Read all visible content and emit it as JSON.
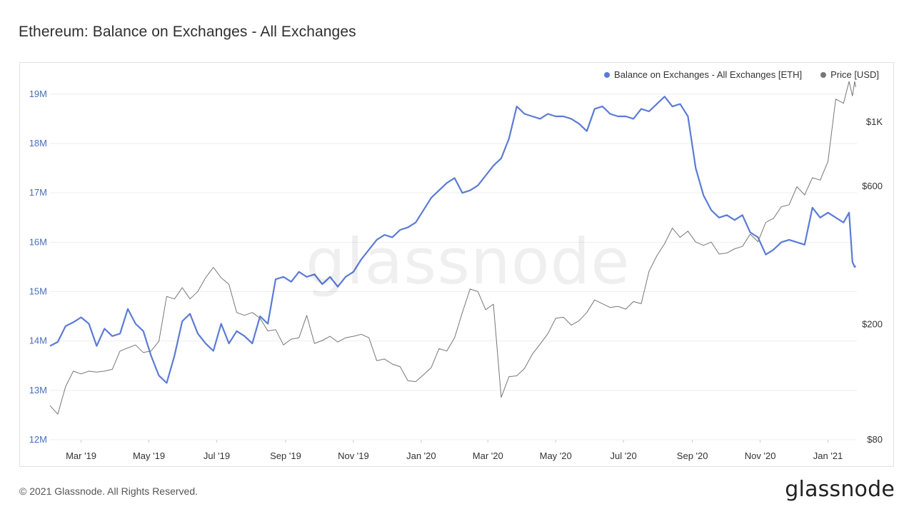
{
  "header": {
    "title": "Ethereum: Balance on Exchanges - All Exchanges"
  },
  "footer": {
    "copyright": "© 2021 Glassnode. All Rights Reserved.",
    "logo_text": "glassnode"
  },
  "watermark": "glassnode",
  "colors": {
    "balance": "#5b7bd5",
    "price": "#777777",
    "grid": "#eeeeee",
    "axis_left": "#4a6fb5",
    "axis_right": "#333333"
  },
  "chart_data": {
    "type": "line",
    "legend": {
      "placement": "top-right",
      "items": [
        {
          "label": "Balance on Exchanges - All Exchanges [ETH]",
          "color": "#5b7bd5"
        },
        {
          "label": "Price [USD]",
          "color": "#777777"
        }
      ]
    },
    "grid": true,
    "x_axis": {
      "range": [
        "2019-02-01",
        "2021-01-27"
      ],
      "ticks": [
        {
          "date": "2019-03-01",
          "label": "Mar '19"
        },
        {
          "date": "2019-05-01",
          "label": "May '19"
        },
        {
          "date": "2019-07-01",
          "label": "Jul '19"
        },
        {
          "date": "2019-09-01",
          "label": "Sep '19"
        },
        {
          "date": "2019-11-01",
          "label": "Nov '19"
        },
        {
          "date": "2020-01-01",
          "label": "Jan '20"
        },
        {
          "date": "2020-03-01",
          "label": "Mar '20"
        },
        {
          "date": "2020-05-01",
          "label": "May '20"
        },
        {
          "date": "2020-07-01",
          "label": "Jul '20"
        },
        {
          "date": "2020-09-01",
          "label": "Sep '20"
        },
        {
          "date": "2020-11-01",
          "label": "Nov '20"
        },
        {
          "date": "2021-01-01",
          "label": "Jan '21"
        }
      ]
    },
    "y_left": {
      "range": [
        12000000,
        19200000
      ],
      "ticks": [
        {
          "value": 12000000,
          "label": "12M"
        },
        {
          "value": 13000000,
          "label": "13M"
        },
        {
          "value": 14000000,
          "label": "14M"
        },
        {
          "value": 15000000,
          "label": "15M"
        },
        {
          "value": 16000000,
          "label": "16M"
        },
        {
          "value": 17000000,
          "label": "17M"
        },
        {
          "value": 18000000,
          "label": "18M"
        },
        {
          "value": 19000000,
          "label": "19M"
        }
      ]
    },
    "y_right": {
      "scale": "log",
      "range": [
        80,
        1350
      ],
      "ticks": [
        {
          "value": 80,
          "label": "$80"
        },
        {
          "value": 200,
          "label": "$200"
        },
        {
          "value": 600,
          "label": "$600"
        },
        {
          "value": 1000,
          "label": "$1K"
        }
      ]
    },
    "series": [
      {
        "axis": "left",
        "color": "#5b7bd5",
        "points": [
          [
            "2019-02-01",
            13900000
          ],
          [
            "2019-02-08",
            13980000
          ],
          [
            "2019-02-15",
            14300000
          ],
          [
            "2019-02-22",
            14380000
          ],
          [
            "2019-03-01",
            14480000
          ],
          [
            "2019-03-08",
            14350000
          ],
          [
            "2019-03-15",
            13900000
          ],
          [
            "2019-03-22",
            14250000
          ],
          [
            "2019-03-29",
            14100000
          ],
          [
            "2019-04-05",
            14150000
          ],
          [
            "2019-04-12",
            14650000
          ],
          [
            "2019-04-19",
            14350000
          ],
          [
            "2019-04-26",
            14200000
          ],
          [
            "2019-05-03",
            13700000
          ],
          [
            "2019-05-10",
            13300000
          ],
          [
            "2019-05-17",
            13150000
          ],
          [
            "2019-05-24",
            13700000
          ],
          [
            "2019-05-31",
            14400000
          ],
          [
            "2019-06-07",
            14550000
          ],
          [
            "2019-06-14",
            14150000
          ],
          [
            "2019-06-21",
            13950000
          ],
          [
            "2019-06-28",
            13800000
          ],
          [
            "2019-07-05",
            14350000
          ],
          [
            "2019-07-12",
            13950000
          ],
          [
            "2019-07-19",
            14200000
          ],
          [
            "2019-07-26",
            14100000
          ],
          [
            "2019-08-02",
            13950000
          ],
          [
            "2019-08-09",
            14500000
          ],
          [
            "2019-08-16",
            14350000
          ],
          [
            "2019-08-23",
            15250000
          ],
          [
            "2019-08-30",
            15300000
          ],
          [
            "2019-09-06",
            15200000
          ],
          [
            "2019-09-13",
            15400000
          ],
          [
            "2019-09-20",
            15300000
          ],
          [
            "2019-09-27",
            15350000
          ],
          [
            "2019-10-04",
            15150000
          ],
          [
            "2019-10-11",
            15300000
          ],
          [
            "2019-10-18",
            15100000
          ],
          [
            "2019-10-25",
            15300000
          ],
          [
            "2019-11-01",
            15400000
          ],
          [
            "2019-11-08",
            15650000
          ],
          [
            "2019-11-15",
            15850000
          ],
          [
            "2019-11-22",
            16050000
          ],
          [
            "2019-11-29",
            16150000
          ],
          [
            "2019-12-06",
            16100000
          ],
          [
            "2019-12-13",
            16250000
          ],
          [
            "2019-12-20",
            16300000
          ],
          [
            "2019-12-27",
            16400000
          ],
          [
            "2020-01-03",
            16650000
          ],
          [
            "2020-01-10",
            16900000
          ],
          [
            "2020-01-17",
            17050000
          ],
          [
            "2020-01-24",
            17200000
          ],
          [
            "2020-01-31",
            17300000
          ],
          [
            "2020-02-07",
            17000000
          ],
          [
            "2020-02-14",
            17050000
          ],
          [
            "2020-02-21",
            17150000
          ],
          [
            "2020-02-28",
            17350000
          ],
          [
            "2020-03-06",
            17550000
          ],
          [
            "2020-03-13",
            17700000
          ],
          [
            "2020-03-20",
            18100000
          ],
          [
            "2020-03-27",
            18750000
          ],
          [
            "2020-04-03",
            18600000
          ],
          [
            "2020-04-10",
            18550000
          ],
          [
            "2020-04-17",
            18500000
          ],
          [
            "2020-04-24",
            18600000
          ],
          [
            "2020-05-01",
            18550000
          ],
          [
            "2020-05-08",
            18550000
          ],
          [
            "2020-05-15",
            18500000
          ],
          [
            "2020-05-22",
            18400000
          ],
          [
            "2020-05-29",
            18250000
          ],
          [
            "2020-06-05",
            18700000
          ],
          [
            "2020-06-12",
            18750000
          ],
          [
            "2020-06-19",
            18600000
          ],
          [
            "2020-06-26",
            18550000
          ],
          [
            "2020-07-03",
            18550000
          ],
          [
            "2020-07-10",
            18500000
          ],
          [
            "2020-07-17",
            18700000
          ],
          [
            "2020-07-24",
            18650000
          ],
          [
            "2020-07-31",
            18800000
          ],
          [
            "2020-08-07",
            18950000
          ],
          [
            "2020-08-14",
            18750000
          ],
          [
            "2020-08-21",
            18800000
          ],
          [
            "2020-08-28",
            18550000
          ],
          [
            "2020-09-04",
            17500000
          ],
          [
            "2020-09-11",
            16950000
          ],
          [
            "2020-09-18",
            16650000
          ],
          [
            "2020-09-25",
            16500000
          ],
          [
            "2020-10-02",
            16550000
          ],
          [
            "2020-10-09",
            16450000
          ],
          [
            "2020-10-16",
            16550000
          ],
          [
            "2020-10-23",
            16200000
          ],
          [
            "2020-10-30",
            16100000
          ],
          [
            "2020-11-06",
            15750000
          ],
          [
            "2020-11-13",
            15850000
          ],
          [
            "2020-11-20",
            16000000
          ],
          [
            "2020-11-27",
            16050000
          ],
          [
            "2020-12-04",
            16000000
          ],
          [
            "2020-12-11",
            15950000
          ],
          [
            "2020-12-18",
            16700000
          ],
          [
            "2020-12-25",
            16500000
          ],
          [
            "2021-01-01",
            16600000
          ],
          [
            "2021-01-08",
            16500000
          ],
          [
            "2021-01-15",
            16400000
          ],
          [
            "2021-01-20",
            16600000
          ],
          [
            "2021-01-23",
            15600000
          ],
          [
            "2021-01-25",
            15500000
          ],
          [
            "2021-01-26",
            15520000
          ]
        ]
      },
      {
        "axis": "right",
        "color": "#777777",
        "points": [
          [
            "2019-02-01",
            105
          ],
          [
            "2019-02-08",
            98
          ],
          [
            "2019-02-15",
            122
          ],
          [
            "2019-02-22",
            138
          ],
          [
            "2019-03-01",
            135
          ],
          [
            "2019-03-08",
            138
          ],
          [
            "2019-03-15",
            137
          ],
          [
            "2019-03-22",
            138
          ],
          [
            "2019-03-29",
            140
          ],
          [
            "2019-04-05",
            162
          ],
          [
            "2019-04-12",
            166
          ],
          [
            "2019-04-19",
            170
          ],
          [
            "2019-04-26",
            160
          ],
          [
            "2019-05-03",
            162
          ],
          [
            "2019-05-10",
            175
          ],
          [
            "2019-05-17",
            250
          ],
          [
            "2019-05-24",
            245
          ],
          [
            "2019-05-31",
            268
          ],
          [
            "2019-06-07",
            245
          ],
          [
            "2019-06-14",
            260
          ],
          [
            "2019-06-21",
            290
          ],
          [
            "2019-06-28",
            315
          ],
          [
            "2019-07-05",
            290
          ],
          [
            "2019-07-12",
            275
          ],
          [
            "2019-07-19",
            220
          ],
          [
            "2019-07-26",
            215
          ],
          [
            "2019-08-02",
            220
          ],
          [
            "2019-08-09",
            210
          ],
          [
            "2019-08-16",
            190
          ],
          [
            "2019-08-23",
            192
          ],
          [
            "2019-08-30",
            170
          ],
          [
            "2019-09-06",
            178
          ],
          [
            "2019-09-13",
            180
          ],
          [
            "2019-09-20",
            215
          ],
          [
            "2019-09-27",
            172
          ],
          [
            "2019-10-04",
            176
          ],
          [
            "2019-10-11",
            182
          ],
          [
            "2019-10-18",
            174
          ],
          [
            "2019-10-25",
            180
          ],
          [
            "2019-11-01",
            182
          ],
          [
            "2019-11-08",
            185
          ],
          [
            "2019-11-15",
            180
          ],
          [
            "2019-11-22",
            150
          ],
          [
            "2019-11-29",
            152
          ],
          [
            "2019-12-06",
            146
          ],
          [
            "2019-12-13",
            143
          ],
          [
            "2019-12-20",
            128
          ],
          [
            "2019-12-27",
            127
          ],
          [
            "2020-01-03",
            134
          ],
          [
            "2020-01-10",
            142
          ],
          [
            "2020-01-17",
            165
          ],
          [
            "2020-01-24",
            162
          ],
          [
            "2020-01-31",
            180
          ],
          [
            "2020-02-07",
            220
          ],
          [
            "2020-02-14",
            265
          ],
          [
            "2020-02-21",
            260
          ],
          [
            "2020-02-28",
            225
          ],
          [
            "2020-03-06",
            235
          ],
          [
            "2020-03-13",
            112
          ],
          [
            "2020-03-20",
            132
          ],
          [
            "2020-03-27",
            133
          ],
          [
            "2020-04-03",
            141
          ],
          [
            "2020-04-10",
            158
          ],
          [
            "2020-04-17",
            171
          ],
          [
            "2020-04-24",
            186
          ],
          [
            "2020-05-01",
            210
          ],
          [
            "2020-05-08",
            212
          ],
          [
            "2020-05-15",
            199
          ],
          [
            "2020-05-22",
            206
          ],
          [
            "2020-05-29",
            220
          ],
          [
            "2020-06-05",
            243
          ],
          [
            "2020-06-12",
            236
          ],
          [
            "2020-06-19",
            229
          ],
          [
            "2020-06-26",
            231
          ],
          [
            "2020-07-03",
            226
          ],
          [
            "2020-07-10",
            240
          ],
          [
            "2020-07-17",
            236
          ],
          [
            "2020-07-24",
            305
          ],
          [
            "2020-07-31",
            345
          ],
          [
            "2020-08-07",
            380
          ],
          [
            "2020-08-14",
            430
          ],
          [
            "2020-08-21",
            400
          ],
          [
            "2020-08-28",
            420
          ],
          [
            "2020-09-04",
            385
          ],
          [
            "2020-09-11",
            375
          ],
          [
            "2020-09-18",
            385
          ],
          [
            "2020-09-25",
            350
          ],
          [
            "2020-10-02",
            353
          ],
          [
            "2020-10-09",
            365
          ],
          [
            "2020-10-16",
            372
          ],
          [
            "2020-10-23",
            410
          ],
          [
            "2020-10-30",
            386
          ],
          [
            "2020-11-06",
            450
          ],
          [
            "2020-11-13",
            465
          ],
          [
            "2020-11-20",
            510
          ],
          [
            "2020-11-27",
            518
          ],
          [
            "2020-12-04",
            598
          ],
          [
            "2020-12-11",
            560
          ],
          [
            "2020-12-18",
            642
          ],
          [
            "2020-12-25",
            630
          ],
          [
            "2021-01-01",
            730
          ],
          [
            "2021-01-08",
            1200
          ],
          [
            "2021-01-15",
            1160
          ],
          [
            "2021-01-20",
            1380
          ],
          [
            "2021-01-23",
            1230
          ],
          [
            "2021-01-25",
            1380
          ],
          [
            "2021-01-26",
            1320
          ]
        ]
      }
    ]
  }
}
